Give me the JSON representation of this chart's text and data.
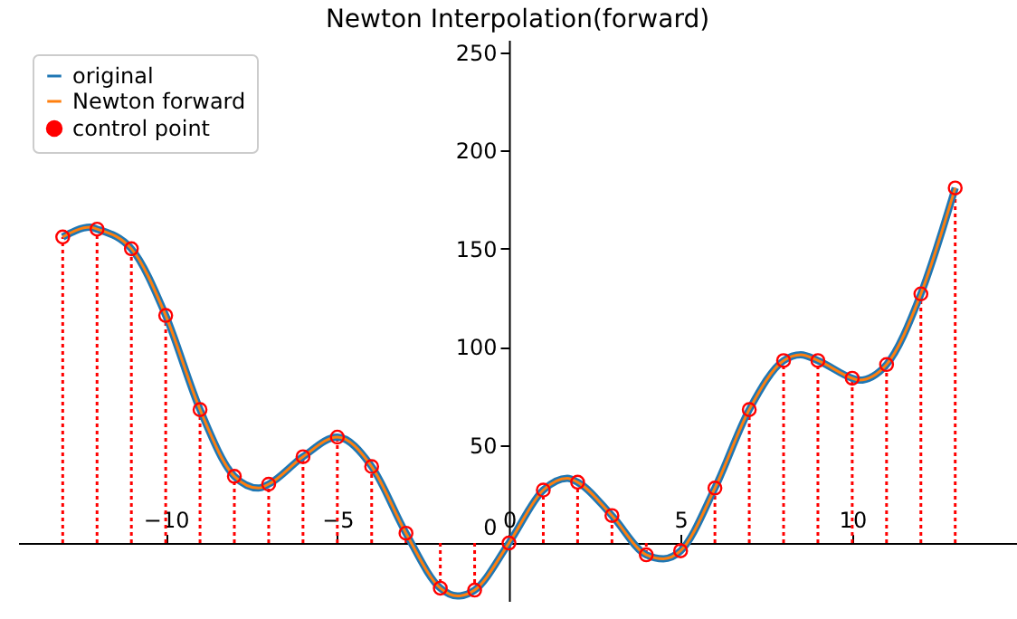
{
  "chart_data": {
    "type": "line",
    "title": "Newton Interpolation(forward)",
    "xlim": [
      -14.3,
      14.8
    ],
    "ylim": [
      -29.5,
      256.5
    ],
    "xticks": [
      -10,
      -5,
      0,
      5,
      10
    ],
    "yticks": [
      0,
      50,
      100,
      150,
      200,
      250
    ],
    "grid": false,
    "legend": "top left",
    "series": [
      {
        "name": "original",
        "color": "#1f77b4",
        "x": [
          -13,
          -12.2,
          -12,
          -11,
          -10,
          -9,
          -8,
          -7.3,
          -7,
          -6,
          -5,
          -4,
          -3,
          -2,
          -1.5,
          -1,
          0,
          1,
          1.7,
          2,
          3,
          4,
          4.5,
          5,
          6,
          7,
          8,
          8.5,
          9,
          10,
          10.2,
          11,
          12,
          13
        ],
        "values": [
          156,
          161,
          160,
          150,
          116,
          68,
          34,
          28,
          30,
          44,
          54,
          39,
          5,
          -23,
          -27,
          -24,
          0,
          27,
          33,
          31,
          14,
          -6,
          -8,
          -4,
          28,
          68,
          93,
          96,
          93,
          84,
          83,
          91,
          127,
          181
        ]
      },
      {
        "name": "Newton forward",
        "color": "#ff7f0e",
        "x": [
          -13,
          -12.2,
          -12,
          -11,
          -10,
          -9,
          -8,
          -7.3,
          -7,
          -6,
          -5,
          -4,
          -3,
          -2,
          -1.5,
          -1,
          0,
          1,
          1.7,
          2,
          3,
          4,
          4.5,
          5,
          6,
          7,
          8,
          8.5,
          9,
          10,
          10.2,
          11,
          12,
          13
        ],
        "values": [
          156,
          161,
          160,
          150,
          116,
          68,
          34,
          28,
          30,
          44,
          54,
          39,
          5,
          -23,
          -27,
          -24,
          0,
          27,
          33,
          31,
          14,
          -6,
          -8,
          -4,
          28,
          68,
          93,
          96,
          93,
          84,
          83,
          91,
          127,
          181
        ]
      },
      {
        "name": "control point",
        "type": "lollipop",
        "color": "#ff0000",
        "marker": "circle",
        "line_style": "dotted",
        "x": [
          -13,
          -12,
          -11,
          -10,
          -9,
          -8,
          -7,
          -6,
          -5,
          -4,
          -3,
          -2,
          -1,
          0,
          1,
          2,
          3,
          4,
          5,
          6,
          7,
          8,
          9,
          10,
          11,
          12,
          13
        ],
        "values": [
          156,
          160,
          150,
          116,
          68,
          34,
          30,
          44,
          54,
          39,
          5,
          -23,
          -24,
          0,
          27,
          31,
          14,
          -6,
          -4,
          28,
          68,
          93,
          93,
          84,
          91,
          127,
          181
        ]
      }
    ]
  }
}
